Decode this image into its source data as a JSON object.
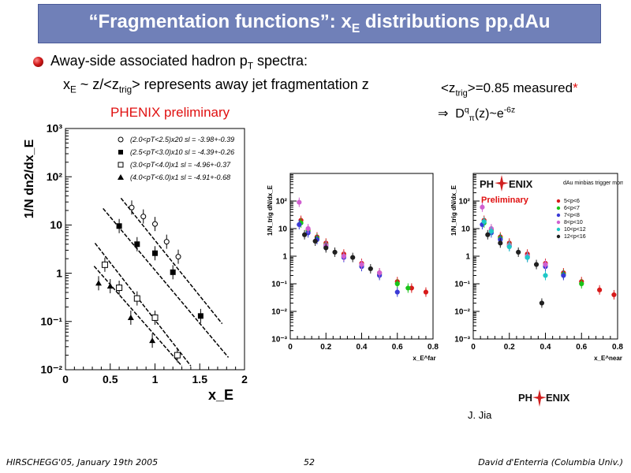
{
  "slide": {
    "title_main": "“Fragmentation functions”: x",
    "title_sub": "E",
    "title_rest": " distributions pp,dAu",
    "bullet": {
      "text": "Away-side associated hadron p",
      "sub": "T",
      "rest": " spectra:"
    },
    "line2": {
      "a": "x",
      "a_sub": "E",
      "b": " ~ z/<z",
      "b_sub": "trig",
      "c": "> represents away jet fragmentation z"
    },
    "ztrig": {
      "a": "<z",
      "a_sub": "trig",
      "b": ">=0.85 measured",
      "star": "*"
    },
    "dq": {
      "arrow": "⇒",
      "a": "D",
      "a_sup": "q",
      "a_sub": "π",
      "b": "(z)~e",
      "b_sup": "-6z"
    },
    "preliminary_label": "PHENIX preliminary",
    "author": "J. Jia",
    "footer": {
      "left": "HIRSCHEGG'05, January 19th 2005",
      "center": "52",
      "right": "David d'Enterria (Columbia Univ.)"
    },
    "colors": {
      "title_bg": "#7080b8",
      "accent_red": "#e01010"
    }
  },
  "logo": {
    "text_a": "PH",
    "text_b": "ENIX",
    "preliminary": "Preliminary"
  },
  "chart_data": [
    {
      "type": "scatter",
      "xlabel": "x_E",
      "ylabel": "1/N dn2/dx_E",
      "xlim": [
        0,
        2
      ],
      "ylim": [
        0.01,
        1000
      ],
      "log_y": true,
      "x_ticks": [
        "0",
        "0.5",
        "1",
        "1.5",
        "2"
      ],
      "y_ticks": [
        "10⁻²",
        "10⁻¹",
        "1",
        "10",
        "10²",
        "10³"
      ],
      "series": [
        {
          "name": "(2.0<pT<2.5)x20  sl = -3.98+-0.39",
          "marker": "open-circle",
          "x": [
            0.74,
            0.87,
            1.0,
            1.13,
            1.26
          ],
          "y": [
            23,
            15,
            10.5,
            4.5,
            2.2
          ]
        },
        {
          "name": "(2.5<pT<3.0)x10  sl = -4.39+-0.26",
          "marker": "filled-square",
          "x": [
            0.6,
            0.8,
            1.0,
            1.2,
            1.51
          ],
          "y": [
            9.5,
            4,
            2.6,
            1.05,
            0.13
          ]
        },
        {
          "name": "(3.0<pT<4.0)x1  sl = -4.96+-0.37",
          "marker": "open-square",
          "x": [
            0.44,
            0.6,
            0.8,
            1.0,
            1.25
          ],
          "y": [
            1.5,
            0.5,
            0.3,
            0.12,
            0.02
          ]
        },
        {
          "name": "(4.0<pT<6.0)x1  sl = -4.91+-0.68",
          "marker": "filled-triangle",
          "x": [
            0.37,
            0.5,
            0.73,
            0.97
          ],
          "y": [
            0.62,
            0.54,
            0.12,
            0.04
          ]
        }
      ]
    },
    {
      "type": "scatter",
      "xlabel": "x_E^far",
      "ylabel": "1/N_trig dN/dx_E",
      "xlim": [
        0,
        0.8
      ],
      "ylim": [
        0.001,
        1000
      ],
      "log_y": true,
      "x_ticks": [
        "0",
        "0.2",
        "0.4",
        "0.6",
        "0.8"
      ],
      "y_ticks": [
        "10⁻³",
        "10⁻²",
        "10⁻¹",
        "1",
        "10",
        "10²"
      ],
      "series": [
        {
          "name": "red",
          "color": "#d81a1a",
          "x": [
            0.06,
            0.1,
            0.15,
            0.2,
            0.3,
            0.4,
            0.5,
            0.6,
            0.68,
            0.76
          ],
          "y": [
            20,
            9,
            5,
            3,
            1.2,
            0.55,
            0.25,
            0.12,
            0.07,
            0.05
          ]
        },
        {
          "name": "green",
          "color": "#19c419",
          "x": [
            0.06,
            0.1,
            0.15,
            0.2,
            0.3,
            0.4,
            0.5,
            0.6,
            0.66
          ],
          "y": [
            16,
            8,
            4.5,
            2.6,
            1.0,
            0.45,
            0.22,
            0.1,
            0.07
          ]
        },
        {
          "name": "blue",
          "color": "#3a3ad6",
          "x": [
            0.05,
            0.1,
            0.15,
            0.2,
            0.3,
            0.4,
            0.5,
            0.6
          ],
          "y": [
            14,
            7,
            4,
            2.3,
            0.9,
            0.42,
            0.2,
            0.05
          ]
        },
        {
          "name": "magenta",
          "color": "#d060d0",
          "x": [
            0.05,
            0.1,
            0.2,
            0.3,
            0.4,
            0.5
          ],
          "y": [
            90,
            10,
            2.5,
            1.0,
            0.5,
            0.25
          ]
        },
        {
          "name": "black",
          "color": "#202020",
          "x": [
            0.08,
            0.14,
            0.2,
            0.25,
            0.35,
            0.45
          ],
          "y": [
            6,
            3.5,
            2.0,
            1.4,
            0.9,
            0.35
          ]
        }
      ]
    },
    {
      "type": "scatter",
      "xlabel": "x_E^near",
      "ylabel": "1/N_trig dN/dx_E",
      "xlim": [
        0,
        0.8
      ],
      "ylim": [
        0.001,
        1000
      ],
      "log_y": true,
      "x_ticks": [
        "0",
        "0.2",
        "0.4",
        "0.6",
        "0.8"
      ],
      "y_ticks": [
        "10⁻³",
        "10⁻²",
        "10⁻¹",
        "1",
        "10",
        "10²"
      ],
      "legend_title": "dAu minbias trigger momentum",
      "series": [
        {
          "name": "5<p<6",
          "color": "#d81a1a",
          "x": [
            0.06,
            0.1,
            0.15,
            0.2,
            0.3,
            0.4,
            0.5,
            0.6,
            0.7,
            0.78
          ],
          "y": [
            20,
            9,
            5,
            3,
            1.2,
            0.55,
            0.25,
            0.12,
            0.06,
            0.04
          ]
        },
        {
          "name": "6<p<7",
          "color": "#19c419",
          "x": [
            0.06,
            0.1,
            0.15,
            0.2,
            0.3,
            0.4,
            0.5,
            0.6
          ],
          "y": [
            16,
            8,
            4.5,
            2.6,
            1.0,
            0.45,
            0.22,
            0.1
          ]
        },
        {
          "name": "7<p<8",
          "color": "#3a3ad6",
          "x": [
            0.05,
            0.1,
            0.15,
            0.2,
            0.3,
            0.4,
            0.5
          ],
          "y": [
            14,
            7,
            4,
            2.3,
            0.9,
            0.42,
            0.2
          ]
        },
        {
          "name": "8<p<10",
          "color": "#d060d0",
          "x": [
            0.05,
            0.1,
            0.2,
            0.3,
            0.4
          ],
          "y": [
            60,
            10,
            2.5,
            1.0,
            0.5
          ]
        },
        {
          "name": "10<p<12",
          "color": "#1fc8c8",
          "x": [
            0.06,
            0.1,
            0.2,
            0.3,
            0.4
          ],
          "y": [
            18,
            8,
            2.2,
            0.9,
            0.2
          ]
        },
        {
          "name": "12<p<16",
          "color": "#202020",
          "x": [
            0.08,
            0.15,
            0.25,
            0.35,
            0.38
          ],
          "y": [
            6,
            3.0,
            1.4,
            0.5,
            0.02
          ]
        }
      ]
    }
  ]
}
